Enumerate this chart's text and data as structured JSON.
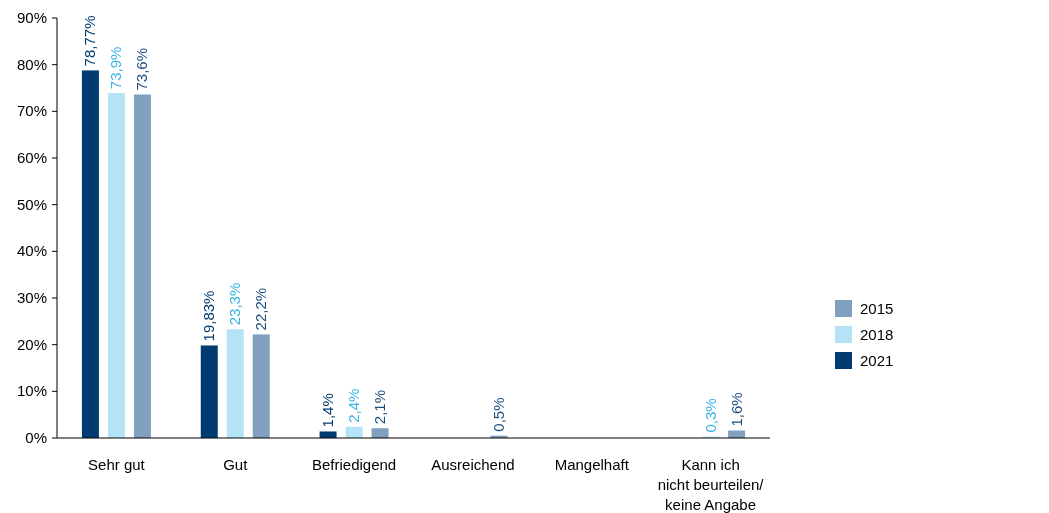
{
  "chart_data": {
    "type": "bar",
    "categories": [
      "Sehr gut",
      "Gut",
      "Befriedigend",
      "Ausreichend",
      "Mangelhaft",
      "Kann ich\nnicht beurteilen/\nkeine Angabe"
    ],
    "series": [
      {
        "name": "2021",
        "color": "#003c71",
        "values": [
          78.77,
          19.83,
          1.4,
          null,
          null,
          null
        ],
        "value_labels": [
          "78,77%",
          "19,83%",
          "1,4%",
          null,
          null,
          null
        ]
      },
      {
        "name": "2018",
        "color": "#b3e3f5",
        "values": [
          73.9,
          23.3,
          2.4,
          null,
          null,
          0.3
        ],
        "value_labels": [
          "73,9%",
          "23,3%",
          "2,4%",
          null,
          null,
          "0,3%"
        ]
      },
      {
        "name": "2015",
        "color": "#819fbe",
        "values": [
          73.6,
          22.2,
          2.1,
          0.5,
          null,
          1.6
        ],
        "value_labels": [
          "73,6%",
          "22,2%",
          "2,1%",
          "0,5%",
          null,
          "1,6%"
        ]
      }
    ],
    "ylim": [
      0,
      90
    ],
    "yticks": [
      {
        "value": 0,
        "label": "0%"
      },
      {
        "value": 10,
        "label": "10%"
      },
      {
        "value": 20,
        "label": "20%"
      },
      {
        "value": 30,
        "label": "30%"
      },
      {
        "value": 40,
        "label": "40%"
      },
      {
        "value": 50,
        "label": "50%"
      },
      {
        "value": 60,
        "label": "60%"
      },
      {
        "value": 70,
        "label": "70%"
      },
      {
        "value": 80,
        "label": "80%"
      },
      {
        "value": 90,
        "label": "90%"
      }
    ],
    "legend": "right"
  }
}
